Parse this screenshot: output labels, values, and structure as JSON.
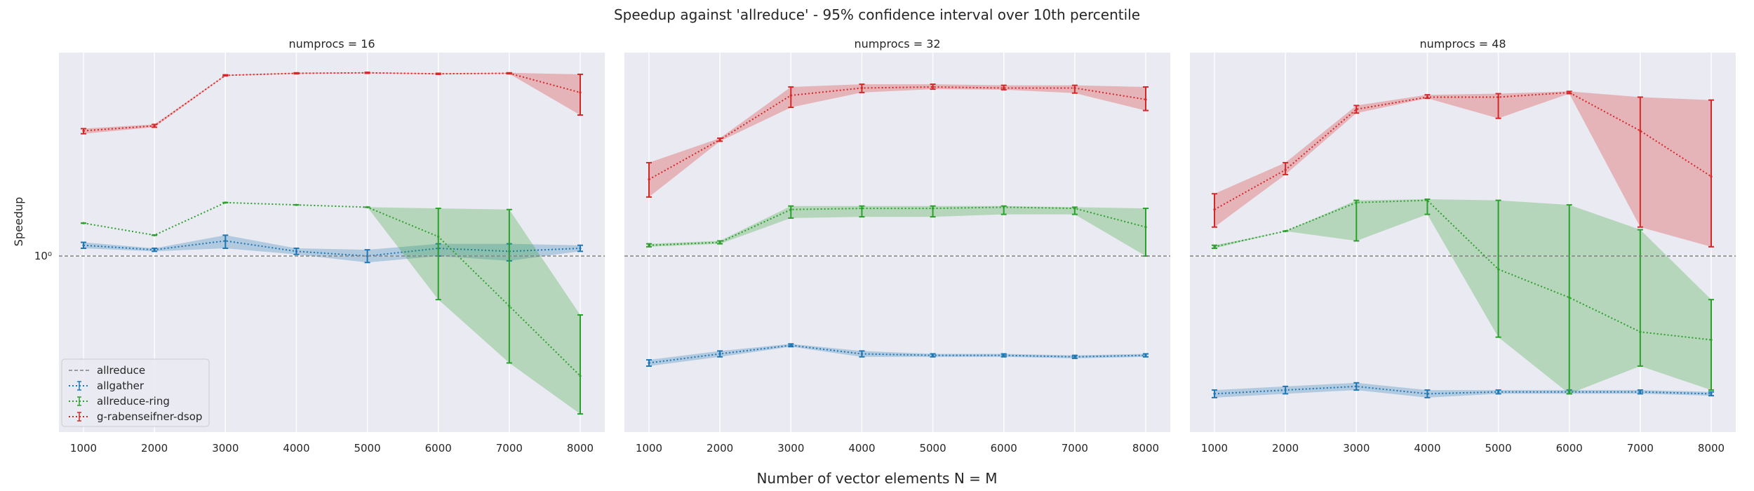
{
  "chart_data": {
    "type": "line",
    "title": "Speedup against 'allreduce' - 95% confidence interval over 10th percentile",
    "xlabel": "Number of vector elements N = M",
    "ylabel": "Speedup",
    "yscale": "log",
    "ytick_label": "10⁰",
    "reference_value": 1.0,
    "grid": true,
    "legend_placement": "lower-left",
    "legend": [
      "allreduce",
      "allgather",
      "allreduce-ring",
      "g-rabenseifner-dsop"
    ],
    "colors": {
      "allreduce": "#808080",
      "allgather": "#1f77b4",
      "allreduce-ring": "#2ca02c",
      "g-rabenseifner-dsop": "#d62728",
      "background": "#eaeaf2",
      "grid": "#ffffff"
    },
    "x": [
      1000,
      2000,
      3000,
      4000,
      5000,
      6000,
      7000,
      8000
    ],
    "panels": [
      {
        "title": "numprocs = 16",
        "series": [
          {
            "name": "allgather",
            "values": [
              1.07,
              1.04,
              1.1,
              1.03,
              1.0,
              1.05,
              1.03,
              1.05
            ],
            "lower": [
              1.05,
              1.03,
              1.05,
              1.01,
              0.96,
              1.0,
              0.97,
              1.03
            ],
            "upper": [
              1.09,
              1.05,
              1.14,
              1.05,
              1.04,
              1.08,
              1.08,
              1.07
            ]
          },
          {
            "name": "allreduce-ring",
            "values": [
              1.23,
              1.14,
              1.4,
              1.38,
              1.36,
              1.13,
              0.73,
              0.47
            ],
            "lower": [
              1.23,
              1.14,
              1.4,
              1.38,
              1.36,
              0.76,
              0.51,
              0.37
            ],
            "upper": [
              1.23,
              1.14,
              1.4,
              1.38,
              1.36,
              1.35,
              1.34,
              0.69
            ]
          },
          {
            "name": "g-rabenseifner-dsop",
            "values": [
              2.2,
              2.27,
              3.12,
              3.16,
              3.17,
              3.15,
              3.16,
              2.8
            ],
            "lower": [
              2.16,
              2.25,
              3.11,
              3.15,
              3.16,
              3.14,
              3.15,
              2.43
            ],
            "upper": [
              2.23,
              2.29,
              3.13,
              3.17,
              3.18,
              3.16,
              3.17,
              3.14
            ]
          }
        ]
      },
      {
        "title": "numprocs = 32",
        "series": [
          {
            "name": "allgather",
            "values": [
              0.51,
              0.54,
              0.57,
              0.54,
              0.535,
              0.535,
              0.53,
              0.535
            ],
            "lower": [
              0.5,
              0.53,
              0.565,
              0.53,
              0.53,
              0.53,
              0.525,
              0.53
            ],
            "upper": [
              0.52,
              0.55,
              0.575,
              0.55,
              0.54,
              0.54,
              0.535,
              0.54
            ]
          },
          {
            "name": "allreduce-ring",
            "values": [
              1.07,
              1.09,
              1.34,
              1.35,
              1.35,
              1.36,
              1.35,
              1.2
            ],
            "lower": [
              1.06,
              1.08,
              1.27,
              1.28,
              1.28,
              1.3,
              1.3,
              1.0
            ],
            "upper": [
              1.08,
              1.1,
              1.37,
              1.37,
              1.37,
              1.37,
              1.36,
              1.35
            ]
          },
          {
            "name": "g-rabenseifner-dsop",
            "values": [
              1.62,
              2.08,
              2.75,
              2.88,
              2.9,
              2.88,
              2.88,
              2.68
            ],
            "lower": [
              1.45,
              2.06,
              2.55,
              2.8,
              2.86,
              2.85,
              2.79,
              2.5
            ],
            "upper": [
              1.8,
              2.1,
              2.9,
              2.95,
              2.95,
              2.93,
              2.93,
              2.9
            ]
          }
        ]
      },
      {
        "title": "numprocs = 48",
        "series": [
          {
            "name": "allgather",
            "values": [
              0.42,
              0.43,
              0.44,
              0.42,
              0.425,
              0.425,
              0.425,
              0.42
            ],
            "lower": [
              0.41,
              0.42,
              0.43,
              0.41,
              0.42,
              0.42,
              0.42,
              0.415
            ],
            "upper": [
              0.43,
              0.44,
              0.45,
              0.43,
              0.43,
              0.43,
              0.43,
              0.425
            ]
          },
          {
            "name": "allreduce-ring",
            "values": [
              1.06,
              1.17,
              1.4,
              1.42,
              0.92,
              0.77,
              0.62,
              0.59
            ],
            "lower": [
              1.05,
              1.17,
              1.1,
              1.3,
              0.6,
              0.42,
              0.5,
              0.43
            ],
            "upper": [
              1.07,
              1.17,
              1.42,
              1.43,
              1.42,
              1.38,
              1.18,
              0.76
            ]
          },
          {
            "name": "g-rabenseifner-dsop",
            "values": [
              1.34,
              1.72,
              2.52,
              2.72,
              2.72,
              2.8,
              2.2,
              1.65
            ],
            "lower": [
              1.2,
              1.67,
              2.46,
              2.7,
              2.38,
              2.78,
              1.2,
              1.06
            ],
            "upper": [
              1.48,
              1.8,
              2.58,
              2.76,
              2.78,
              2.82,
              2.72,
              2.67
            ]
          }
        ]
      }
    ]
  }
}
